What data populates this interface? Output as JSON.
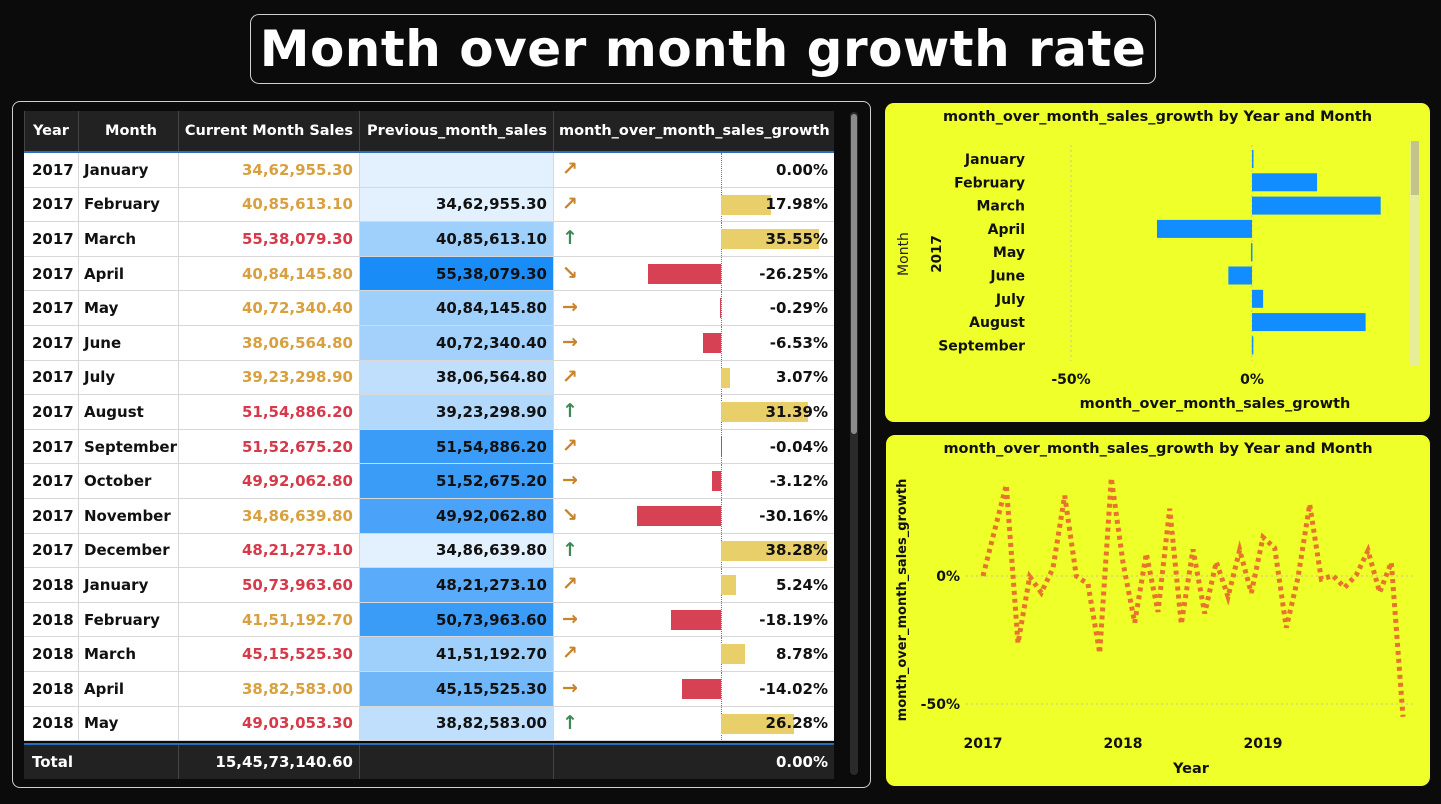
{
  "title": "Month over month growth rate",
  "table": {
    "columns": [
      "Year",
      "Month",
      "Current Month Sales",
      "Previous_month_sales",
      "month_over_month_sales_growth"
    ],
    "rows": [
      {
        "year": "2017",
        "month": "January",
        "current": "34,62,955.30",
        "previous": "",
        "growth": "0.00%",
        "g": 0.0,
        "cur_color": "#d8a03e",
        "arrow": "↗",
        "arrow_color": "#c8842c",
        "prev_shade": "#e3f0fd"
      },
      {
        "year": "2017",
        "month": "February",
        "current": "40,85,613.10",
        "previous": "34,62,955.30",
        "growth": "17.98%",
        "g": 17.98,
        "cur_color": "#d8a03e",
        "arrow": "↗",
        "arrow_color": "#c8842c",
        "prev_shade": "#e3f0fd"
      },
      {
        "year": "2017",
        "month": "March",
        "current": "55,38,079.30",
        "previous": "40,85,613.10",
        "growth": "35.55%",
        "g": 35.55,
        "cur_color": "#d63a4a",
        "arrow": "↑",
        "arrow_color": "#3e8a57",
        "prev_shade": "#9fcffb"
      },
      {
        "year": "2017",
        "month": "April",
        "current": "40,84,145.80",
        "previous": "55,38,079.30",
        "growth": "-26.25%",
        "g": -26.25,
        "cur_color": "#d8a03e",
        "arrow": "↘",
        "arrow_color": "#c8842c",
        "prev_shade": "#1a8cf7"
      },
      {
        "year": "2017",
        "month": "May",
        "current": "40,72,340.40",
        "previous": "40,84,145.80",
        "growth": "-0.29%",
        "g": -0.29,
        "cur_color": "#d8a03e",
        "arrow": "→",
        "arrow_color": "#c8842c",
        "prev_shade": "#9fcffb"
      },
      {
        "year": "2017",
        "month": "June",
        "current": "38,06,564.80",
        "previous": "40,72,340.40",
        "growth": "-6.53%",
        "g": -6.53,
        "cur_color": "#d8a03e",
        "arrow": "→",
        "arrow_color": "#c8842c",
        "prev_shade": "#a4d1fb"
      },
      {
        "year": "2017",
        "month": "July",
        "current": "39,23,298.90",
        "previous": "38,06,564.80",
        "growth": "3.07%",
        "g": 3.07,
        "cur_color": "#d8a03e",
        "arrow": "↗",
        "arrow_color": "#c8842c",
        "prev_shade": "#bfdffc"
      },
      {
        "year": "2017",
        "month": "August",
        "current": "51,54,886.20",
        "previous": "39,23,298.90",
        "growth": "31.39%",
        "g": 31.39,
        "cur_color": "#d63a4a",
        "arrow": "↑",
        "arrow_color": "#3e8a57",
        "prev_shade": "#b2d8fb"
      },
      {
        "year": "2017",
        "month": "September",
        "current": "51,52,675.20",
        "previous": "51,54,886.20",
        "growth": "-0.04%",
        "g": -0.04,
        "cur_color": "#d63a4a",
        "arrow": "↗",
        "arrow_color": "#c8842c",
        "prev_shade": "#3b9cf8"
      },
      {
        "year": "2017",
        "month": "October",
        "current": "49,92,062.80",
        "previous": "51,52,675.20",
        "growth": "-3.12%",
        "g": -3.12,
        "cur_color": "#d63a4a",
        "arrow": "→",
        "arrow_color": "#c8842c",
        "prev_shade": "#3b9cf8"
      },
      {
        "year": "2017",
        "month": "November",
        "current": "34,86,639.80",
        "previous": "49,92,062.80",
        "growth": "-30.16%",
        "g": -30.16,
        "cur_color": "#d8a03e",
        "arrow": "↘",
        "arrow_color": "#c8842c",
        "prev_shade": "#4aa3f8"
      },
      {
        "year": "2017",
        "month": "December",
        "current": "48,21,273.10",
        "previous": "34,86,639.80",
        "growth": "38.28%",
        "g": 38.28,
        "cur_color": "#d63a4a",
        "arrow": "↑",
        "arrow_color": "#3e8a57",
        "prev_shade": "#e3f0fd"
      },
      {
        "year": "2018",
        "month": "January",
        "current": "50,73,963.60",
        "previous": "48,21,273.10",
        "growth": "5.24%",
        "g": 5.24,
        "cur_color": "#d63a4a",
        "arrow": "↗",
        "arrow_color": "#c8842c",
        "prev_shade": "#5aabf9"
      },
      {
        "year": "2018",
        "month": "February",
        "current": "41,51,192.70",
        "previous": "50,73,963.60",
        "growth": "-18.19%",
        "g": -18.19,
        "cur_color": "#d8a03e",
        "arrow": "→",
        "arrow_color": "#c8842c",
        "prev_shade": "#3b9cf8"
      },
      {
        "year": "2018",
        "month": "March",
        "current": "45,15,525.30",
        "previous": "41,51,192.70",
        "growth": "8.78%",
        "g": 8.78,
        "cur_color": "#d63a4a",
        "arrow": "↗",
        "arrow_color": "#c8842c",
        "prev_shade": "#9fcffb"
      },
      {
        "year": "2018",
        "month": "April",
        "current": "38,82,583.00",
        "previous": "45,15,525.30",
        "growth": "-14.02%",
        "g": -14.02,
        "cur_color": "#d8a03e",
        "arrow": "→",
        "arrow_color": "#c8842c",
        "prev_shade": "#6fb6f9"
      },
      {
        "year": "2018",
        "month": "May",
        "current": "49,03,053.30",
        "previous": "38,82,583.00",
        "growth": "26.28%",
        "g": 26.28,
        "cur_color": "#d63a4a",
        "arrow": "↑",
        "arrow_color": "#3e8a57",
        "prev_shade": "#bfdffc"
      }
    ],
    "total": {
      "label": "Total",
      "current": "15,45,73,140.60",
      "growth": "0.00%"
    }
  },
  "chart_data": [
    {
      "type": "bar",
      "orientation": "horizontal",
      "title": "month_over_month_sales_growth by Year and Month",
      "xlabel": "month_over_month_sales_growth",
      "ylabel": "Month",
      "group_label": "2017",
      "categories": [
        "January",
        "February",
        "March",
        "April",
        "May",
        "June",
        "July",
        "August",
        "September"
      ],
      "values": [
        0.0,
        17.98,
        35.55,
        -26.25,
        -0.29,
        -6.53,
        3.07,
        31.39,
        -0.04
      ],
      "xticks": [
        "-50%",
        "0%"
      ],
      "xlim": [
        -60,
        42
      ],
      "color": "#118dff",
      "grid": true
    },
    {
      "type": "line",
      "title": "month_over_month_sales_growth by Year and Month",
      "xlabel": "Year",
      "ylabel": "month_over_month_sales_growth",
      "xticks": [
        "2017",
        "2018",
        "2019"
      ],
      "yticks": [
        "0%",
        "-50%"
      ],
      "ylim": [
        -58,
        42
      ],
      "color": "#e8732c",
      "line_style": "dotted",
      "values": [
        0.0,
        17.98,
        35.55,
        -26.25,
        -0.29,
        -6.53,
        3.07,
        31.39,
        -0.04,
        -3.12,
        -30.16,
        38.28,
        5.24,
        -18.19,
        8.78,
        -14.02,
        26.28,
        -18.8,
        10.4,
        -14.6,
        5.5,
        -8.1,
        10.1,
        -6.6,
        15.1,
        11.0,
        -20.2,
        -0.6,
        28.0,
        -1.2,
        0.1,
        -4.5,
        0.4,
        9.9,
        -6.4,
        5.3,
        -55.0
      ]
    }
  ]
}
